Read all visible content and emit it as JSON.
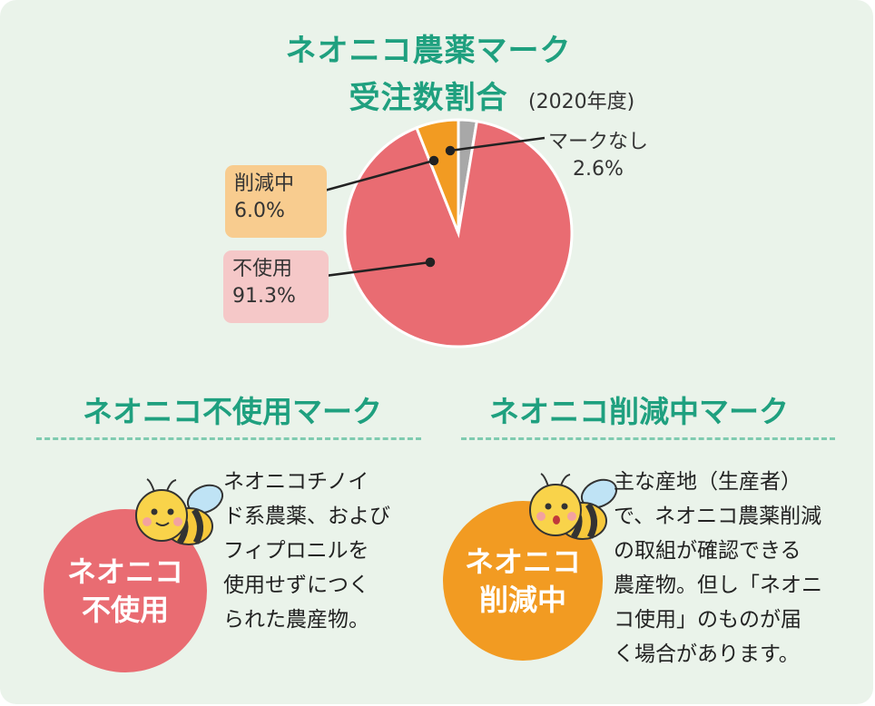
{
  "header": {
    "title_line1": "ネオニコ農薬マーク",
    "title_line2": "受注数割合",
    "year": "(2020年度)"
  },
  "chart_data": {
    "type": "pie",
    "title": "ネオニコ農薬マーク受注数割合",
    "subtitle": "(2020年度)",
    "slices": [
      {
        "name": "マークなし",
        "value": 2.6,
        "label": "2.6%",
        "color": "#a8a8a8"
      },
      {
        "name": "不使用",
        "value": 91.3,
        "label": "91.3%",
        "color": "#e96c72"
      },
      {
        "name": "削減中",
        "value": 6.0,
        "label": "6.0%",
        "color": "#f29b22"
      }
    ]
  },
  "labels": {
    "mark_none_name": "マークなし",
    "mark_none_pct": "2.6%",
    "reduce_name": "削減中",
    "reduce_pct": "6.0%",
    "unused_name": "不使用",
    "unused_pct": "91.3%"
  },
  "sections": {
    "left": {
      "title": "ネオニコ不使用マーク",
      "badge_line1": "ネオニコ",
      "badge_line2": "不使用",
      "desc_lines": [
        "ネオニコチノイ",
        "ド系農薬、および",
        "フィプロニルを",
        "使用せずにつく",
        "られた農産物。"
      ]
    },
    "right": {
      "title": "ネオニコ削減中マーク",
      "badge_line1": "ネオニコ",
      "badge_line2": "削減中",
      "desc_lines": [
        "主な産地（生産者）",
        "で、ネオニコ農薬削減",
        "の取組が確認できる",
        "農産物。但し「ネオニ",
        "コ使用」のものが届",
        "く場合があります。"
      ]
    }
  },
  "colors": {
    "accent": "#1fa07f",
    "unused": "#e96c72",
    "reduce": "#f29b22",
    "none": "#a8a8a8",
    "background": "#eaf3ea"
  },
  "icons": [
    "bee-icon"
  ]
}
